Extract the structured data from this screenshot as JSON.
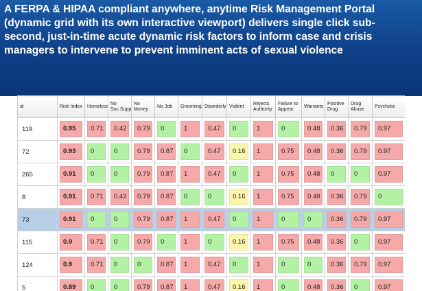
{
  "banner": {
    "line1": "A  FERPA & HIPAA compliant  anywhere, anytime Risk Management Portal",
    "line2": "(dynamic grid with its own interactive viewport) delivers single click sub-",
    "line3": "second, just-in-time acute dynamic risk factors to inform case and crisis",
    "line4": "managers to intervene to prevent imminent acts of sexual violence"
  },
  "colors": {
    "high": "#f5a9a9",
    "low": "#b3f2a5",
    "mid": "#fcf6ad",
    "selected": "#b8cde6",
    "banner": "#0e3f86"
  },
  "grid": {
    "columns": [
      {
        "line1": "id",
        "line2": ""
      },
      {
        "line1": "Risk Index",
        "line2": ""
      },
      {
        "line1": "Homeless",
        "line2": ""
      },
      {
        "line1": "No",
        "line2": "Soc.Support"
      },
      {
        "line1": "No Money",
        "line2": ""
      },
      {
        "line1": "No Job",
        "line2": ""
      },
      {
        "line1": "Grooming",
        "line2": ""
      },
      {
        "line1": "Disorderly",
        "line2": ""
      },
      {
        "line1": "Violent",
        "line2": ""
      },
      {
        "line1": "Rejects",
        "line2": "Authority"
      },
      {
        "line1": "Failure to",
        "line2": "Appear"
      },
      {
        "line1": "Warrants",
        "line2": ""
      },
      {
        "line1": "Positive",
        "line2": "Drug"
      },
      {
        "line1": "Drug Abuse",
        "line2": ""
      },
      {
        "line1": "Psychotic",
        "line2": ""
      }
    ],
    "rows": [
      {
        "id": "119",
        "cells": [
          {
            "v": "0.95",
            "c": "r"
          },
          {
            "v": "0.71",
            "c": "r"
          },
          {
            "v": "0.42",
            "c": "r"
          },
          {
            "v": "0.79",
            "c": "r"
          },
          {
            "v": "0",
            "c": "g"
          },
          {
            "v": "1",
            "c": "r"
          },
          {
            "v": "0.47",
            "c": "r"
          },
          {
            "v": "0",
            "c": "g"
          },
          {
            "v": "1",
            "c": "r"
          },
          {
            "v": "0",
            "c": "g"
          },
          {
            "v": "0.48",
            "c": "r"
          },
          {
            "v": "0.36",
            "c": "r"
          },
          {
            "v": "0.79",
            "c": "r"
          },
          {
            "v": "0.97",
            "c": "r"
          }
        ]
      },
      {
        "id": "72",
        "cells": [
          {
            "v": "0.93",
            "c": "r"
          },
          {
            "v": "0",
            "c": "g"
          },
          {
            "v": "0",
            "c": "g"
          },
          {
            "v": "0.79",
            "c": "r"
          },
          {
            "v": "0.87",
            "c": "r"
          },
          {
            "v": "0",
            "c": "g"
          },
          {
            "v": "0.47",
            "c": "r"
          },
          {
            "v": "0.16",
            "c": "y"
          },
          {
            "v": "1",
            "c": "r"
          },
          {
            "v": "0.75",
            "c": "r"
          },
          {
            "v": "0.48",
            "c": "r"
          },
          {
            "v": "0.36",
            "c": "r"
          },
          {
            "v": "0.79",
            "c": "r"
          },
          {
            "v": "0.97",
            "c": "r"
          }
        ]
      },
      {
        "id": "265",
        "cells": [
          {
            "v": "0.91",
            "c": "r"
          },
          {
            "v": "0",
            "c": "g"
          },
          {
            "v": "0",
            "c": "g"
          },
          {
            "v": "0.79",
            "c": "r"
          },
          {
            "v": "0.87",
            "c": "r"
          },
          {
            "v": "1",
            "c": "r"
          },
          {
            "v": "0.47",
            "c": "r"
          },
          {
            "v": "0",
            "c": "g"
          },
          {
            "v": "1",
            "c": "r"
          },
          {
            "v": "0.75",
            "c": "r"
          },
          {
            "v": "0.48",
            "c": "r"
          },
          {
            "v": "0",
            "c": "g"
          },
          {
            "v": "0",
            "c": "g"
          },
          {
            "v": "0.97",
            "c": "r"
          }
        ]
      },
      {
        "id": "8",
        "cells": [
          {
            "v": "0.91",
            "c": "r"
          },
          {
            "v": "0.71",
            "c": "r"
          },
          {
            "v": "0.42",
            "c": "r"
          },
          {
            "v": "0.79",
            "c": "r"
          },
          {
            "v": "0.87",
            "c": "r"
          },
          {
            "v": "0",
            "c": "g"
          },
          {
            "v": "0",
            "c": "g"
          },
          {
            "v": "0.16",
            "c": "y"
          },
          {
            "v": "1",
            "c": "r"
          },
          {
            "v": "0.75",
            "c": "r"
          },
          {
            "v": "0.48",
            "c": "r"
          },
          {
            "v": "0.36",
            "c": "r"
          },
          {
            "v": "0.79",
            "c": "r"
          },
          {
            "v": "0",
            "c": "g"
          }
        ]
      },
      {
        "id": "73",
        "selected": true,
        "cells": [
          {
            "v": "0.91",
            "c": "r"
          },
          {
            "v": "0",
            "c": "g"
          },
          {
            "v": "0",
            "c": "g"
          },
          {
            "v": "0.79",
            "c": "r"
          },
          {
            "v": "0.87",
            "c": "r"
          },
          {
            "v": "1",
            "c": "r"
          },
          {
            "v": "0.47",
            "c": "r"
          },
          {
            "v": "0",
            "c": "g"
          },
          {
            "v": "1",
            "c": "r"
          },
          {
            "v": "0",
            "c": "g"
          },
          {
            "v": "0",
            "c": "g"
          },
          {
            "v": "0.36",
            "c": "r"
          },
          {
            "v": "0.79",
            "c": "r"
          },
          {
            "v": "0.97",
            "c": "r"
          }
        ]
      },
      {
        "id": "115",
        "cells": [
          {
            "v": "0.9",
            "c": "r"
          },
          {
            "v": "0.71",
            "c": "r"
          },
          {
            "v": "0",
            "c": "g"
          },
          {
            "v": "0.79",
            "c": "r"
          },
          {
            "v": "0",
            "c": "g"
          },
          {
            "v": "1",
            "c": "r"
          },
          {
            "v": "0",
            "c": "g"
          },
          {
            "v": "0.16",
            "c": "y"
          },
          {
            "v": "1",
            "c": "r"
          },
          {
            "v": "0.75",
            "c": "r"
          },
          {
            "v": "0.48",
            "c": "r"
          },
          {
            "v": "0.36",
            "c": "r"
          },
          {
            "v": "0",
            "c": "g"
          },
          {
            "v": "0.97",
            "c": "r"
          }
        ]
      },
      {
        "id": "124",
        "cells": [
          {
            "v": "0.9",
            "c": "r"
          },
          {
            "v": "0.71",
            "c": "r"
          },
          {
            "v": "0",
            "c": "g"
          },
          {
            "v": "0",
            "c": "g"
          },
          {
            "v": "0.87",
            "c": "r"
          },
          {
            "v": "1",
            "c": "r"
          },
          {
            "v": "0.47",
            "c": "r"
          },
          {
            "v": "0",
            "c": "g"
          },
          {
            "v": "1",
            "c": "r"
          },
          {
            "v": "0",
            "c": "g"
          },
          {
            "v": "0",
            "c": "g"
          },
          {
            "v": "0.36",
            "c": "r"
          },
          {
            "v": "0.79",
            "c": "r"
          },
          {
            "v": "0.97",
            "c": "r"
          }
        ]
      },
      {
        "id": "5",
        "cells": [
          {
            "v": "0.89",
            "c": "r"
          },
          {
            "v": "0",
            "c": "g"
          },
          {
            "v": "0",
            "c": "g"
          },
          {
            "v": "0.79",
            "c": "r"
          },
          {
            "v": "0.87",
            "c": "r"
          },
          {
            "v": "1",
            "c": "r"
          },
          {
            "v": "0.47",
            "c": "r"
          },
          {
            "v": "0.16",
            "c": "y"
          },
          {
            "v": "1",
            "c": "r"
          },
          {
            "v": "0",
            "c": "g"
          },
          {
            "v": "0.48",
            "c": "r"
          },
          {
            "v": "0.36",
            "c": "r"
          },
          {
            "v": "0",
            "c": "g"
          },
          {
            "v": "0.97",
            "c": "r"
          }
        ]
      }
    ]
  }
}
